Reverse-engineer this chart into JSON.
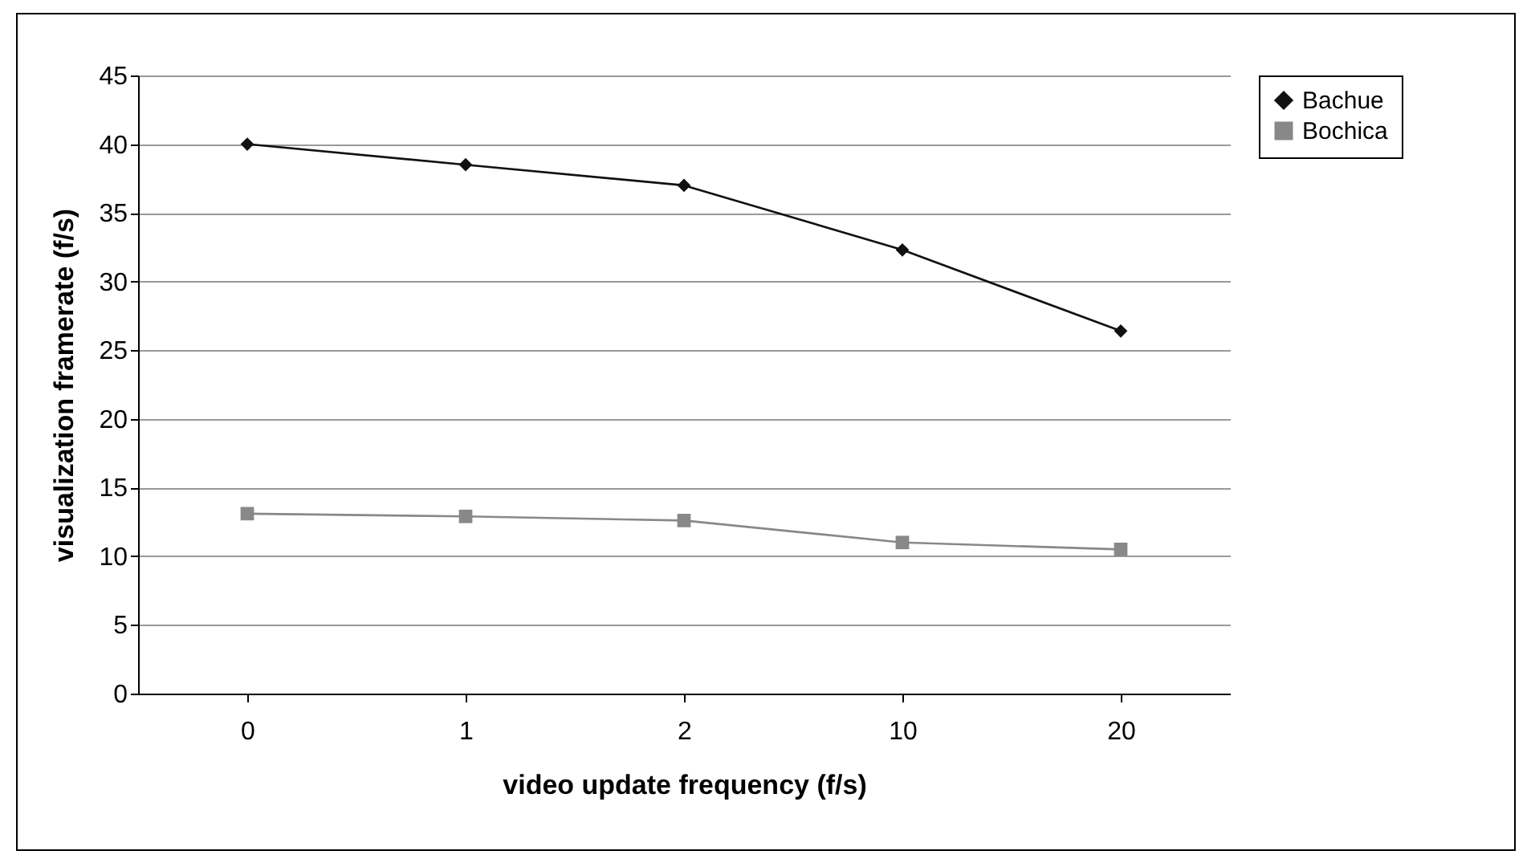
{
  "chart_data": {
    "type": "line",
    "xlabel": "video update frequency (f/s)",
    "ylabel": "visualization  framerate (f/s)",
    "categories": [
      "0",
      "1",
      "2",
      "10",
      "20"
    ],
    "series": [
      {
        "name": "Bachue",
        "color": "#111111",
        "marker": "diamond",
        "values": [
          40,
          38.5,
          37,
          32.3,
          26.4
        ]
      },
      {
        "name": "Bochica",
        "color": "#888888",
        "marker": "square",
        "values": [
          13.1,
          12.9,
          12.6,
          11,
          10.5
        ]
      }
    ],
    "ylim": [
      0,
      45
    ],
    "yticks": [
      0,
      5,
      10,
      15,
      20,
      25,
      30,
      35,
      40,
      45
    ],
    "grid": "y",
    "legend": "right"
  }
}
